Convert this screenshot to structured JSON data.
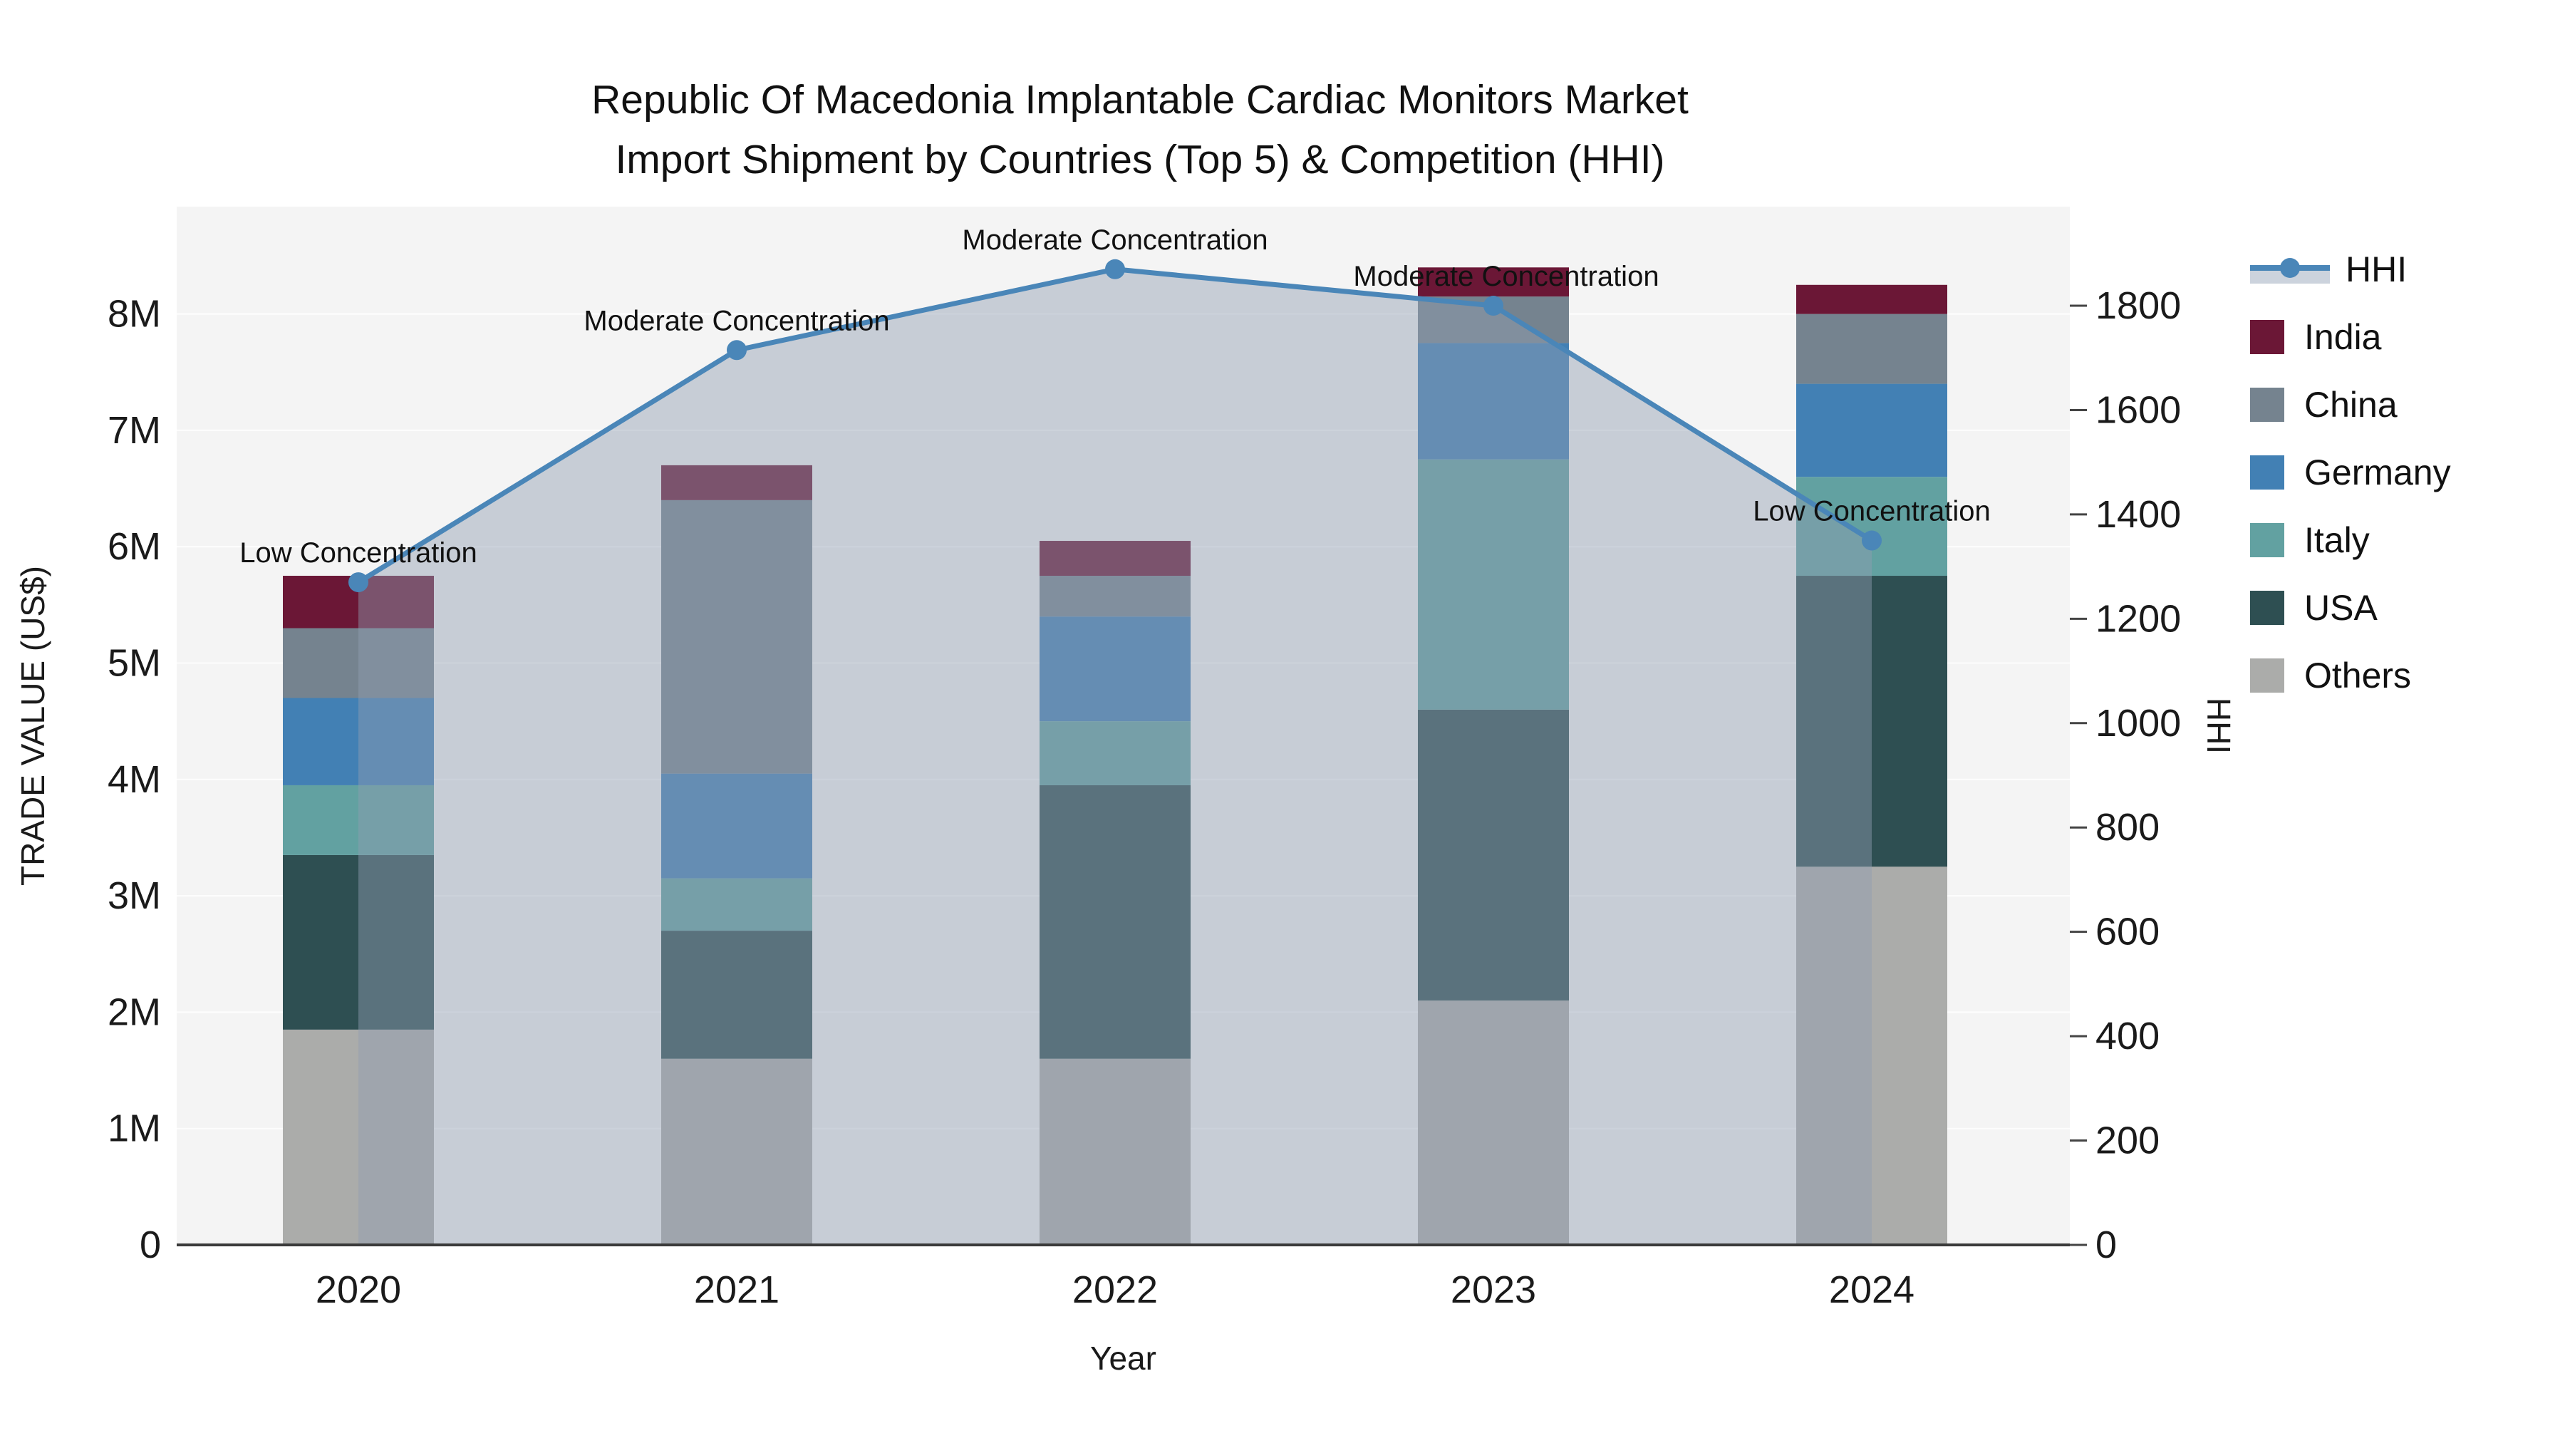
{
  "title": {
    "line1": "Republic Of Macedonia Implantable Cardiac Monitors Market",
    "line2": "Import Shipment by Countries (Top 5) & Competition (HHI)"
  },
  "axes": {
    "x": {
      "title": "Year",
      "ticks": [
        "2020",
        "2021",
        "2022",
        "2023",
        "2024"
      ]
    },
    "y_left": {
      "title": "TRADE VALUE (US$)",
      "ticks": [
        "0",
        "1M",
        "2M",
        "3M",
        "4M",
        "5M",
        "6M",
        "7M",
        "8M"
      ]
    },
    "y_right": {
      "title": "HHI",
      "ticks": [
        "0",
        "200",
        "400",
        "600",
        "800",
        "1000",
        "1200",
        "1400",
        "1600",
        "1800"
      ]
    }
  },
  "legend": {
    "items": [
      {
        "label": "HHI",
        "type": "line",
        "color": "#4a86b8"
      },
      {
        "label": "India",
        "type": "swatch",
        "color": "#6b1736"
      },
      {
        "label": "China",
        "type": "swatch",
        "color": "#75838f"
      },
      {
        "label": "Germany",
        "type": "swatch",
        "color": "#4280b4"
      },
      {
        "label": "Italy",
        "type": "swatch",
        "color": "#62a1a1"
      },
      {
        "label": "USA",
        "type": "swatch",
        "color": "#2e4f52"
      },
      {
        "label": "Others",
        "type": "swatch",
        "color": "#abacaa"
      }
    ]
  },
  "annotations": [
    {
      "category": "2020",
      "text": "Low Concentration"
    },
    {
      "category": "2021",
      "text": "Moderate Concentration"
    },
    {
      "category": "2022",
      "text": "Moderate Concentration"
    },
    {
      "category": "2023",
      "text": "Moderate Concentration"
    },
    {
      "category": "2024",
      "text": "Low Concentration"
    }
  ],
  "chart_data": {
    "type": "bar+line",
    "title": "Republic Of Macedonia Implantable Cardiac Monitors Market Import Shipment by Countries (Top 5) & Competition (HHI)",
    "categories": [
      "2020",
      "2021",
      "2022",
      "2023",
      "2024"
    ],
    "bar_unit": "US$ millions (trade value, left axis)",
    "stack_order": "bottom to top",
    "series": [
      {
        "name": "Others",
        "color": "#abacaa",
        "values": [
          1.85,
          1.6,
          1.6,
          2.1,
          3.25
        ]
      },
      {
        "name": "USA",
        "color": "#2e4f52",
        "values": [
          1.5,
          1.1,
          2.35,
          2.5,
          2.5
        ]
      },
      {
        "name": "Italy",
        "color": "#62a1a1",
        "values": [
          0.6,
          0.45,
          0.55,
          2.15,
          0.85
        ]
      },
      {
        "name": "Germany",
        "color": "#4280b4",
        "values": [
          0.75,
          0.9,
          0.9,
          1.0,
          0.8
        ]
      },
      {
        "name": "China",
        "color": "#75838f",
        "values": [
          0.6,
          2.35,
          0.35,
          0.4,
          0.6
        ]
      },
      {
        "name": "India",
        "color": "#6b1736",
        "values": [
          0.45,
          0.3,
          0.3,
          0.25,
          0.25
        ]
      }
    ],
    "bar_totals": [
      5.75,
      6.7,
      6.05,
      8.4,
      8.25
    ],
    "line_series": {
      "name": "HHI",
      "axis": "right",
      "color": "#4a86b8",
      "values": [
        1270,
        1715,
        1870,
        1800,
        1350
      ]
    },
    "xlabel": "Year",
    "ylabel_left": "TRADE VALUE (US$)",
    "ylabel_right": "HHI",
    "ylim_left": [
      0,
      8.9
    ],
    "ylim_right": [
      0,
      1990
    ],
    "grid": "horizontal major, 1M steps",
    "legend_position": "right",
    "area_fill": "rgba(145,158,178,0.45)",
    "plot_bg": "#f4f4f4",
    "grid_color": "#ffffff"
  }
}
